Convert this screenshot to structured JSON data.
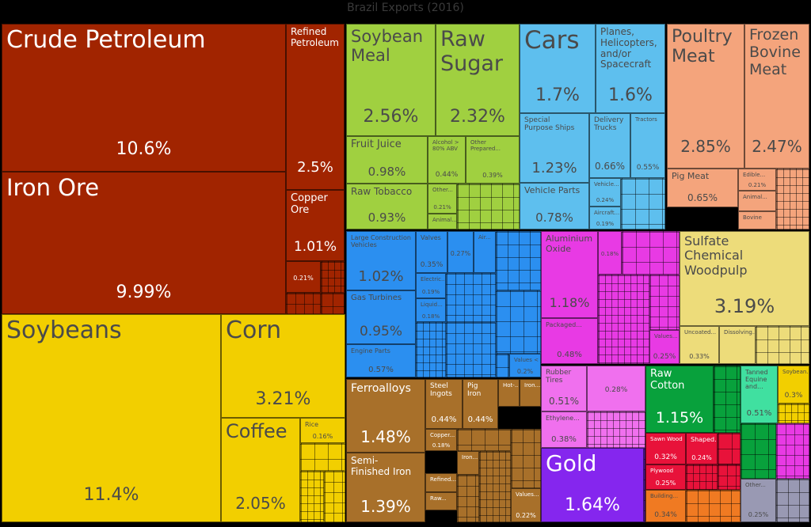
{
  "chart_data": {
    "type": "treemap",
    "title": "Brazil Exports (2016)",
    "palette": {
      "mineral": "#a12400",
      "vegetable": "#f2cf00",
      "food": "#a0d040",
      "transport": "#5ebfee",
      "animal": "#f4a47c",
      "machinery": "#2b8ff0",
      "metals": "#a8702a",
      "chemicals": "#e83ae4",
      "paper": "#eddc7a",
      "plastics": "#f070ee",
      "precious": "#8526ee",
      "textiles": "#08a13c",
      "misc": "#e8123a",
      "stone": "#f07a22",
      "hides": "#40e0a0",
      "other": "#9999b3"
    },
    "items": [
      {
        "name": "Crude Petroleum",
        "value": "10.6%",
        "group": "mineral"
      },
      {
        "name": "Iron Ore",
        "value": "9.99%",
        "group": "mineral"
      },
      {
        "name": "Refined\nPetroleum",
        "value": "2.5%",
        "group": "mineral"
      },
      {
        "name": "Copper\nOre",
        "value": "1.01%",
        "group": "mineral"
      },
      {
        "name": "",
        "value": "0.21%",
        "group": "mineral"
      },
      {
        "name": "Soybeans",
        "value": "11.4%",
        "group": "vegetable"
      },
      {
        "name": "Corn",
        "value": "3.21%",
        "group": "vegetable"
      },
      {
        "name": "Coffee",
        "value": "2.05%",
        "group": "vegetable"
      },
      {
        "name": "Rice",
        "value": "0.16%",
        "group": "vegetable"
      },
      {
        "name": "Soybean\nMeal",
        "value": "2.56%",
        "group": "food"
      },
      {
        "name": "Raw\nSugar",
        "value": "2.32%",
        "group": "food"
      },
      {
        "name": "Fruit Juice",
        "value": "0.98%",
        "group": "food"
      },
      {
        "name": "Alcohol >\n80% ABV",
        "value": "0.44%",
        "group": "food"
      },
      {
        "name": "Other\nPrepared...",
        "value": "0.39%",
        "group": "food"
      },
      {
        "name": "Raw Tobacco",
        "value": "0.93%",
        "group": "food"
      },
      {
        "name": "Other...",
        "value": "0.21%",
        "group": "food"
      },
      {
        "name": "Animal...",
        "value": "",
        "group": "food"
      },
      {
        "name": "Cars",
        "value": "1.7%",
        "group": "transport"
      },
      {
        "name": "Planes,\nHelicopters,\nand/or\nSpacecraft",
        "value": "1.6%",
        "group": "transport"
      },
      {
        "name": "Special\nPurpose Ships",
        "value": "1.23%",
        "group": "transport"
      },
      {
        "name": "Delivery\nTrucks",
        "value": "0.66%",
        "group": "transport"
      },
      {
        "name": "Tractors",
        "value": "0.55%",
        "group": "transport"
      },
      {
        "name": "Vehicle Parts",
        "value": "0.78%",
        "group": "transport"
      },
      {
        "name": "Vehicle...",
        "value": "0.24%",
        "group": "transport"
      },
      {
        "name": "Aircraft...",
        "value": "0.19%",
        "group": "transport"
      },
      {
        "name": "Poultry\nMeat",
        "value": "2.85%",
        "group": "animal"
      },
      {
        "name": "Frozen\nBovine\nMeat",
        "value": "2.47%",
        "group": "animal"
      },
      {
        "name": "Pig Meat",
        "value": "0.65%",
        "group": "animal"
      },
      {
        "name": "Edible...",
        "value": "0.21%",
        "group": "animal"
      },
      {
        "name": "Animal...",
        "value": "",
        "group": "animal"
      },
      {
        "name": "Bovine",
        "value": "",
        "group": "animal"
      },
      {
        "name": "Large Construction\nVehicles",
        "value": "1.02%",
        "group": "machinery"
      },
      {
        "name": "Valves",
        "value": "0.35%",
        "group": "machinery"
      },
      {
        "name": "",
        "value": "0.27%",
        "group": "machinery"
      },
      {
        "name": "Air...",
        "value": "",
        "group": "machinery"
      },
      {
        "name": "Electric...",
        "value": "0.19%",
        "group": "machinery"
      },
      {
        "name": "Liquid...",
        "value": "0.18%",
        "group": "machinery"
      },
      {
        "name": "Gas Turbines",
        "value": "0.95%",
        "group": "machinery"
      },
      {
        "name": "Engine Parts",
        "value": "0.57%",
        "group": "machinery"
      },
      {
        "name": "Values <",
        "value": "0.2%",
        "group": "machinery"
      },
      {
        "name": "Aluminium\nOxide",
        "value": "1.18%",
        "group": "chemicals"
      },
      {
        "name": "",
        "value": "0.18%",
        "group": "chemicals"
      },
      {
        "name": "Packaged...",
        "value": "0.48%",
        "group": "chemicals"
      },
      {
        "name": "Values...",
        "value": "0.25%",
        "group": "chemicals"
      },
      {
        "name": "Sulfate\nChemical\nWoodpulp",
        "value": "3.19%",
        "group": "paper"
      },
      {
        "name": "Uncoated...",
        "value": "0.33%",
        "group": "paper"
      },
      {
        "name": "Dissolving...",
        "value": "",
        "group": "paper"
      },
      {
        "name": "Ferroalloys",
        "value": "1.48%",
        "group": "metals"
      },
      {
        "name": "Steel\nIngots",
        "value": "0.44%",
        "group": "metals"
      },
      {
        "name": "Pig\nIron",
        "value": "0.44%",
        "group": "metals"
      },
      {
        "name": "Hot-...",
        "value": "",
        "group": "metals"
      },
      {
        "name": "Iron...",
        "value": "",
        "group": "metals"
      },
      {
        "name": "Semi-\nFinished Iron",
        "value": "1.39%",
        "group": "metals"
      },
      {
        "name": "Copper...",
        "value": "0.18%",
        "group": "metals"
      },
      {
        "name": "Iron...",
        "value": "",
        "group": "metals"
      },
      {
        "name": "Refined...",
        "value": "",
        "group": "metals"
      },
      {
        "name": "Raw...",
        "value": "",
        "group": "metals"
      },
      {
        "name": "Values...",
        "value": "0.22%",
        "group": "metals"
      },
      {
        "name": "Rubber\nTires",
        "value": "0.51%",
        "group": "plastics"
      },
      {
        "name": "",
        "value": "0.28%",
        "group": "plastics"
      },
      {
        "name": "Ethylene...",
        "value": "0.38%",
        "group": "plastics"
      },
      {
        "name": "Gold",
        "value": "1.64%",
        "group": "precious"
      },
      {
        "name": "Raw\nCotton",
        "value": "1.15%",
        "group": "textiles"
      },
      {
        "name": "Sawn Wood",
        "value": "0.32%",
        "group": "misc"
      },
      {
        "name": "Shaped...",
        "value": "0.24%",
        "group": "misc"
      },
      {
        "name": "Plywood",
        "value": "0.25%",
        "group": "misc"
      },
      {
        "name": "Building...",
        "value": "0.34%",
        "group": "stone"
      },
      {
        "name": "Tanned\nEquine\nand...",
        "value": "0.51%",
        "group": "hides"
      },
      {
        "name": "Soybean...",
        "value": "0.3%",
        "group": "vegetable"
      },
      {
        "name": "Other...",
        "value": "0.25%",
        "group": "other"
      }
    ]
  }
}
